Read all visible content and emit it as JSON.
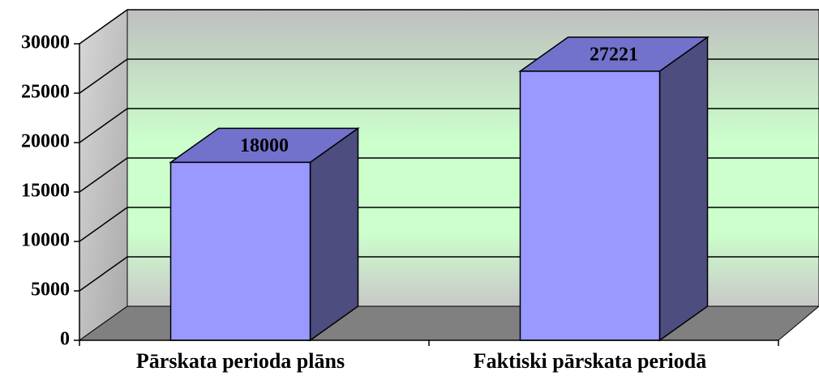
{
  "chart_data": {
    "type": "bar3d",
    "categories": [
      "Pārskata perioda plāns",
      "Faktiski pārskata periodā"
    ],
    "values": [
      18000,
      27221
    ],
    "color": "#9999ff",
    "ylim": [
      0,
      30000
    ],
    "yticks": [
      0,
      5000,
      10000,
      15000,
      20000,
      25000,
      30000
    ],
    "grid": true
  }
}
